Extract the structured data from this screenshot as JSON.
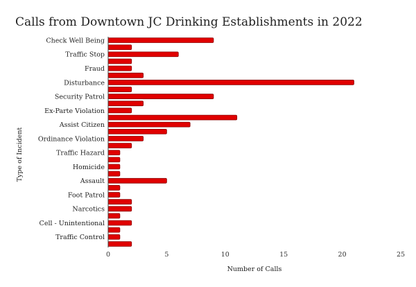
{
  "chart_data": {
    "type": "bar",
    "orientation": "horizontal",
    "title": "Calls from Downtown JC Drinking Establishments in 2022",
    "xlabel": "Number of Calls",
    "ylabel": "Type of Incident",
    "xlim": [
      0,
      25
    ],
    "xticks": [
      "0",
      "5",
      "10",
      "15",
      "20",
      "25"
    ],
    "grid": false,
    "legend": "none",
    "bar_color": "#e00000",
    "bar_edge_color": "#8b0000",
    "categories": [
      "Check Well Being",
      "",
      "Traffic Stop",
      "",
      "Fraud",
      "",
      "Disturbance",
      "",
      "Security Patrol",
      "",
      "Ex-Parte Violation",
      "",
      "Assist Citizen",
      "",
      "Ordinance Violation",
      "",
      "Traffic Hazard",
      "",
      "Homicide",
      "",
      "Assault",
      "",
      "Foot Patrol",
      "",
      "Narcotics",
      "",
      "Cell - Unintentional",
      "",
      "Traffic Control",
      ""
    ],
    "values": [
      9,
      2,
      6,
      2,
      2,
      3,
      21,
      2,
      9,
      3,
      2,
      11,
      7,
      5,
      3,
      2,
      1,
      1,
      1,
      1,
      5,
      1,
      1,
      2,
      2,
      1,
      2,
      1,
      1,
      2
    ]
  }
}
